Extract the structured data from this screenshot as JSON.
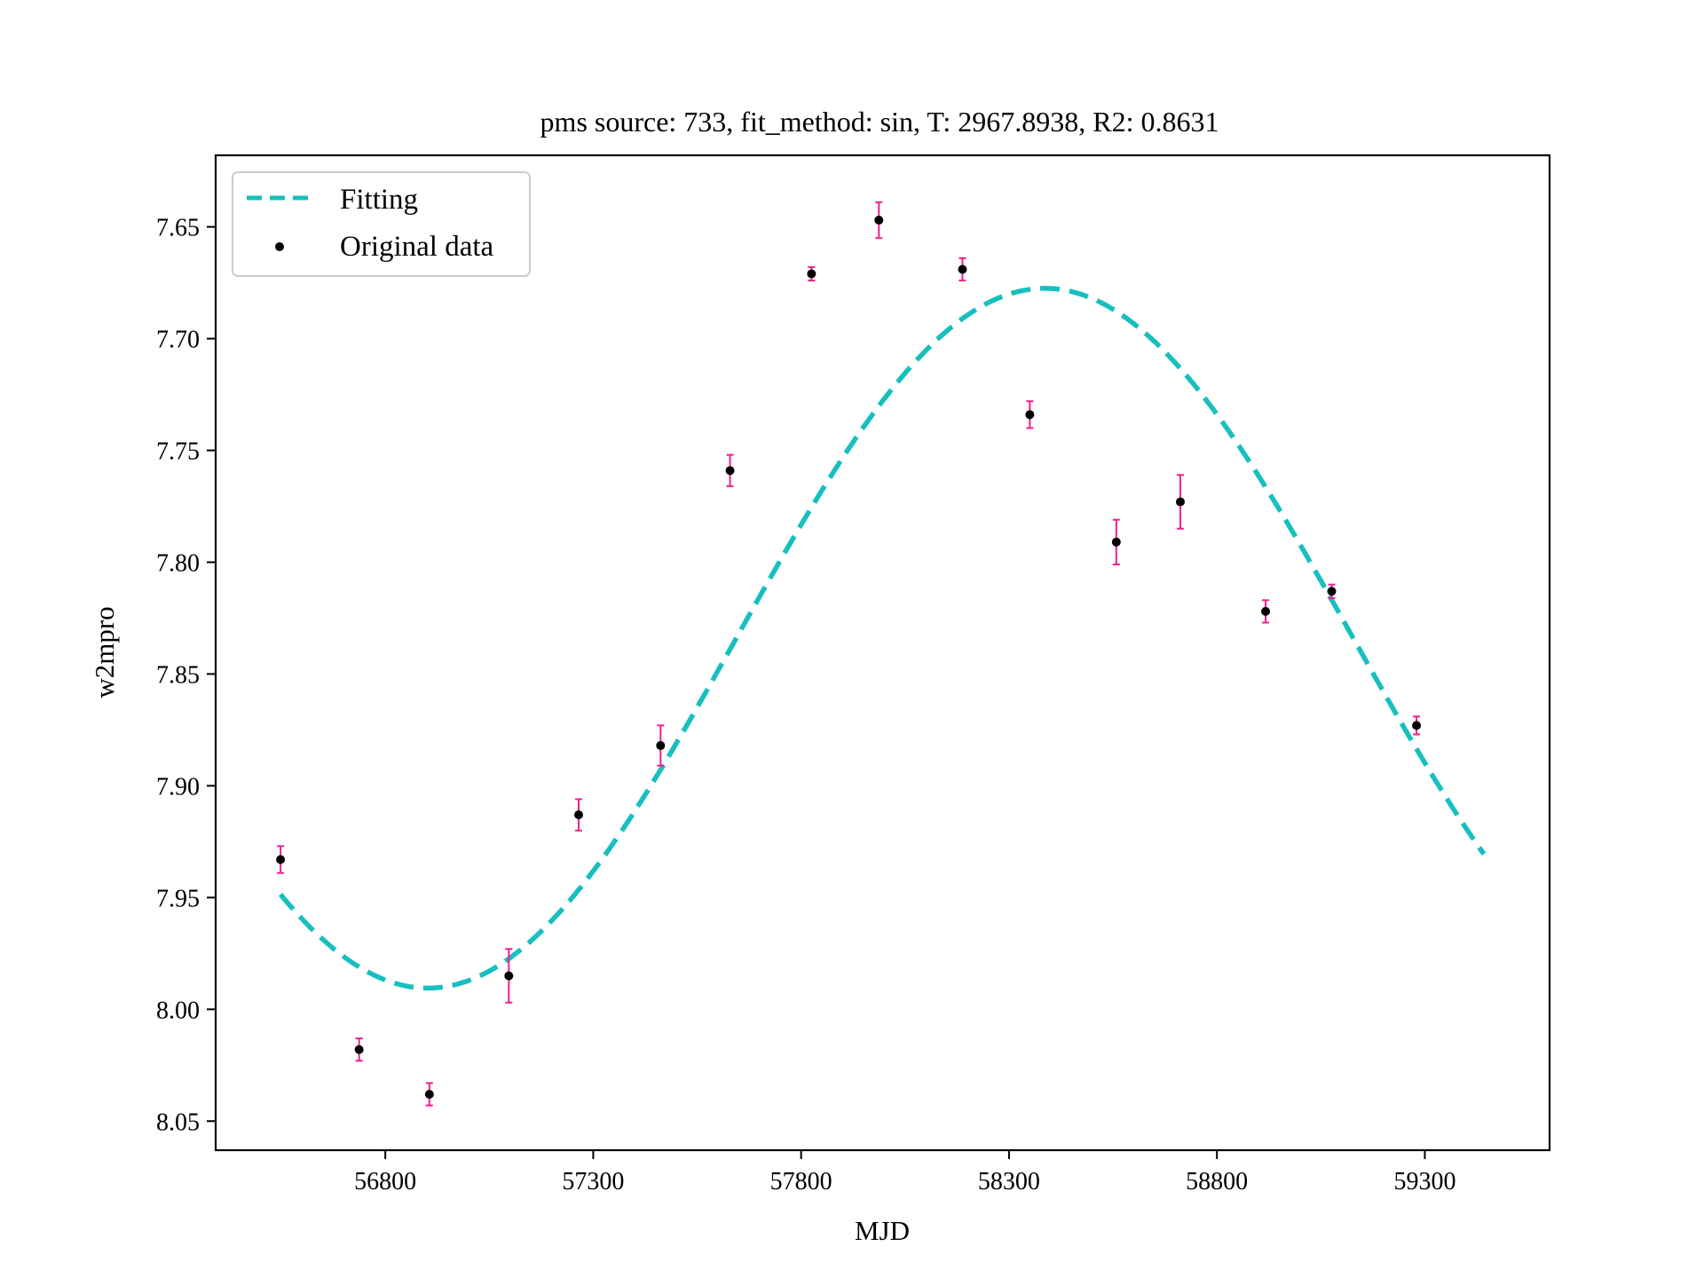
{
  "chart_data": {
    "type": "scatter",
    "title": "pms source: 733, fit_method: sin,  T: 2967.8938,  R2: 0.8631",
    "xlabel": "MJD",
    "ylabel": "w2mpro",
    "xlim": [
      56392,
      59600
    ],
    "ylim": [
      8.063,
      7.618
    ],
    "y_inverted": true,
    "grid": false,
    "legend": "upper left",
    "x_ticks": [
      56800,
      57300,
      57800,
      58300,
      58800,
      59300
    ],
    "x_tick_labels": [
      "56800",
      "57300",
      "57800",
      "58300",
      "58800",
      "59300"
    ],
    "y_ticks": [
      7.65,
      7.7,
      7.75,
      7.8,
      7.85,
      7.9,
      7.95,
      8.0,
      8.05
    ],
    "y_tick_labels": [
      "7.65",
      "7.70",
      "7.75",
      "7.80",
      "7.85",
      "7.90",
      "7.95",
      "8.00",
      "8.05"
    ],
    "series": [
      {
        "name": "Fitting",
        "kind": "line",
        "style": "dashed",
        "color": "#17bfc0",
        "fit": {
          "function": "sin",
          "period": 2967.8938,
          "mean": 7.834,
          "amplitude": 0.1565,
          "phase_min_mjd": 56902
        },
        "x_range": [
          56548,
          59442
        ]
      },
      {
        "name": "Original data",
        "kind": "errorbar",
        "marker_color": "#000000",
        "errorbar_color": "#f0208c",
        "points": [
          {
            "x": 56548,
            "y": 7.933,
            "err": 0.006
          },
          {
            "x": 56737,
            "y": 8.018,
            "err": 0.005
          },
          {
            "x": 56906,
            "y": 8.038,
            "err": 0.005
          },
          {
            "x": 57097,
            "y": 7.985,
            "err": 0.012
          },
          {
            "x": 57265,
            "y": 7.913,
            "err": 0.007
          },
          {
            "x": 57462,
            "y": 7.882,
            "err": 0.009
          },
          {
            "x": 57629,
            "y": 7.759,
            "err": 0.007
          },
          {
            "x": 57825,
            "y": 7.671,
            "err": 0.003
          },
          {
            "x": 57987,
            "y": 7.647,
            "err": 0.008
          },
          {
            "x": 58188,
            "y": 7.669,
            "err": 0.005
          },
          {
            "x": 58350,
            "y": 7.734,
            "err": 0.006
          },
          {
            "x": 58558,
            "y": 7.791,
            "err": 0.01
          },
          {
            "x": 58712,
            "y": 7.773,
            "err": 0.012
          },
          {
            "x": 58917,
            "y": 7.822,
            "err": 0.005
          },
          {
            "x": 59076,
            "y": 7.813,
            "err": 0.003
          },
          {
            "x": 59280,
            "y": 7.873,
            "err": 0.004
          }
        ]
      }
    ]
  }
}
